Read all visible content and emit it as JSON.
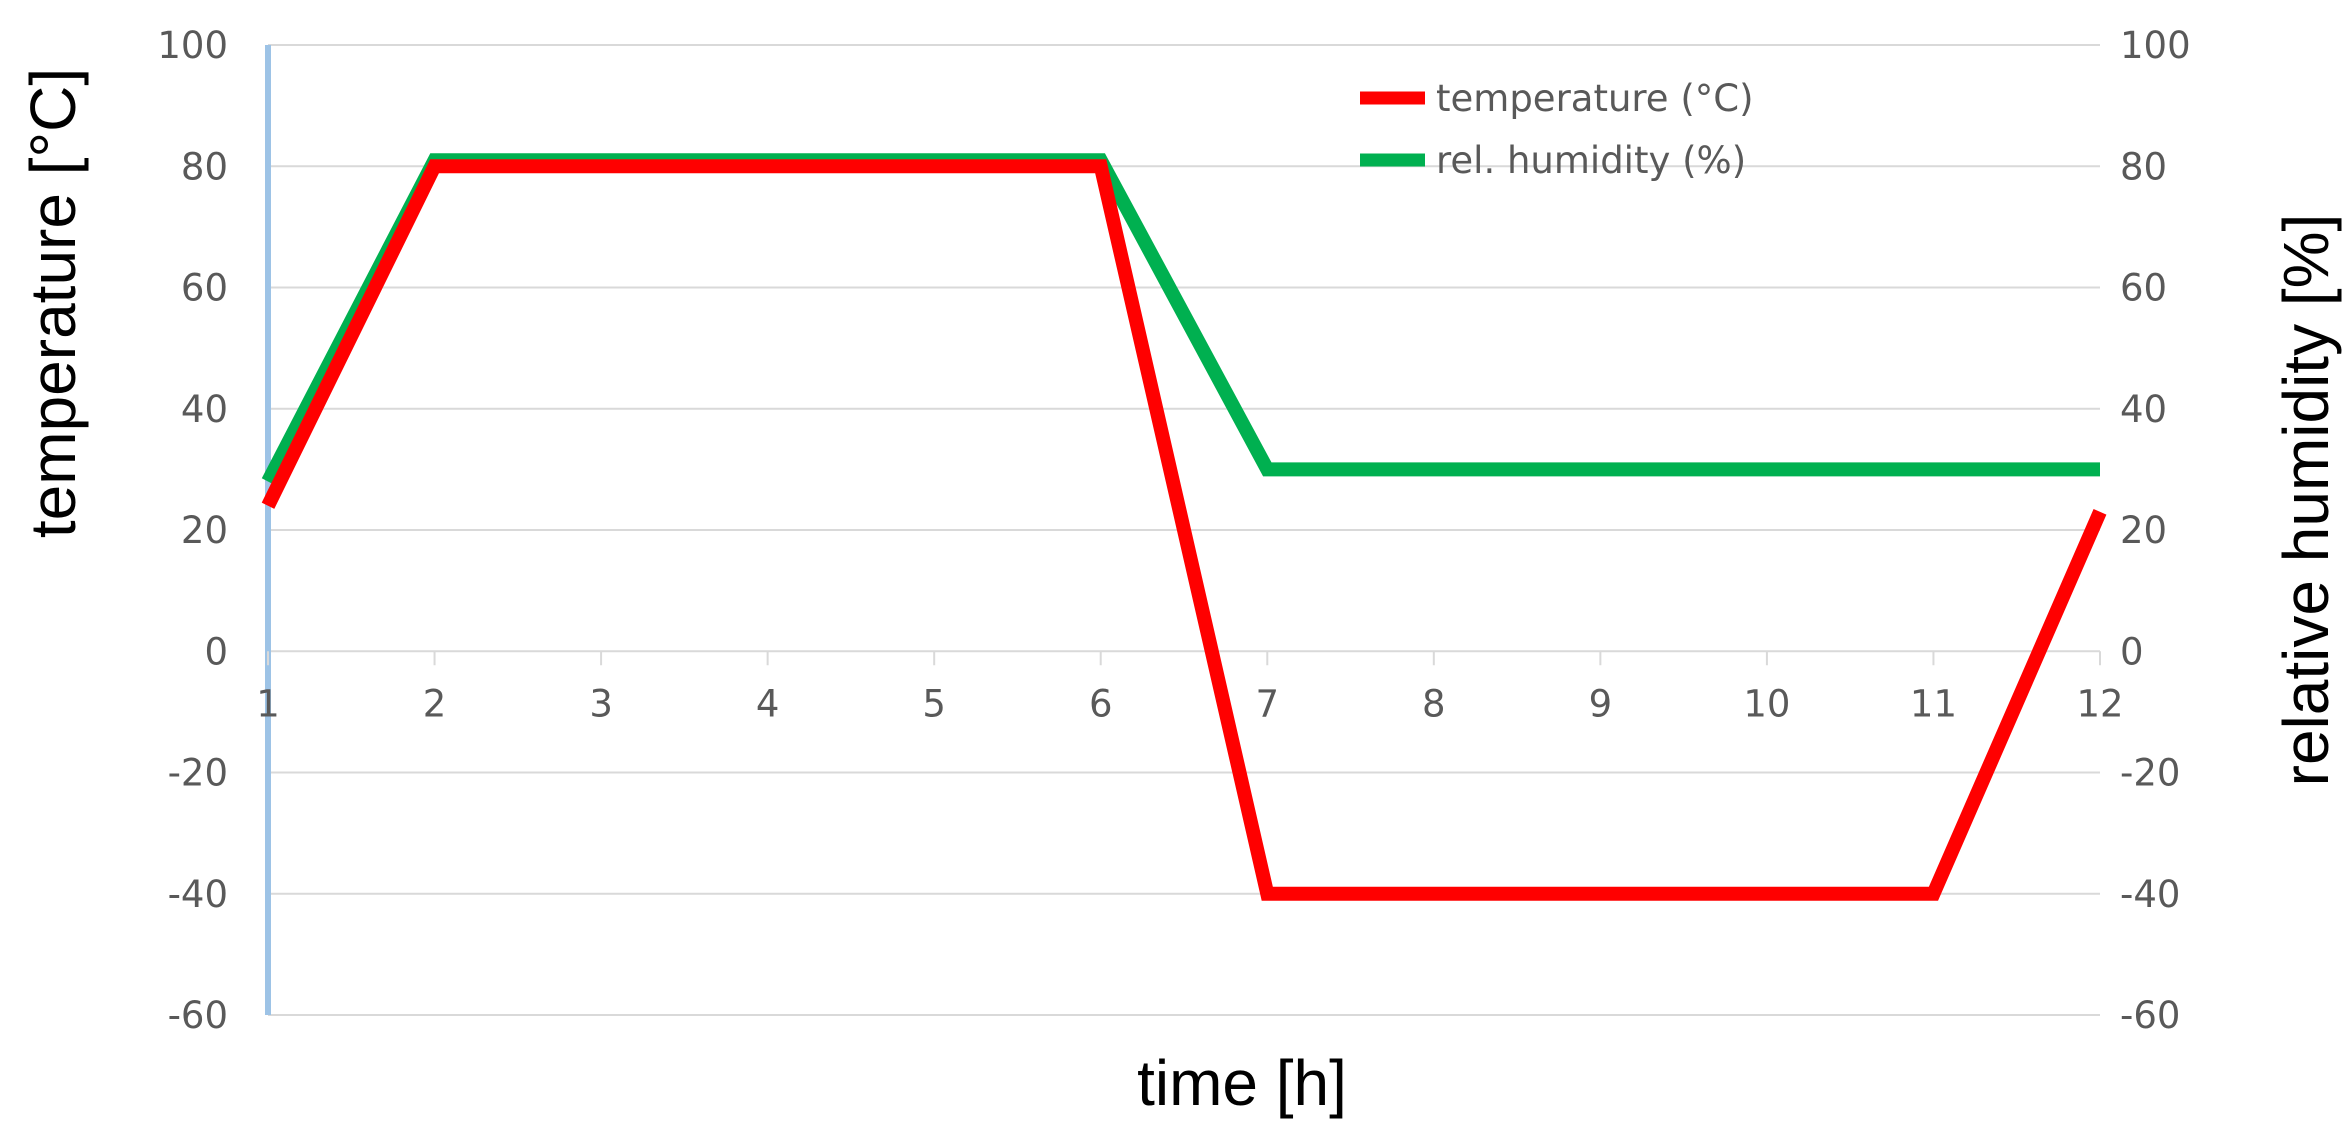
{
  "chart_data": {
    "type": "line",
    "xlabel": "time [h]",
    "ylabel_left": "temperature [°C]",
    "ylabel_right": "relative humidity [%]",
    "x": [
      1,
      2,
      3,
      4,
      5,
      6,
      7,
      8,
      9,
      10,
      11,
      12
    ],
    "x_tick_labels": [
      "1",
      "2",
      "3",
      "4",
      "5",
      "6",
      "7",
      "8",
      "9",
      "10",
      "11",
      "12"
    ],
    "y_tick_labels": [
      "100",
      "80",
      "60",
      "40",
      "20",
      "0",
      "-20",
      "-40",
      "-60"
    ],
    "ylim_left": [
      -60,
      100
    ],
    "ylim_right": [
      -60,
      100
    ],
    "grid": true,
    "legend_position": "top-right",
    "series": [
      {
        "name": "temperature (°C)",
        "axis": "left",
        "color": "#ff0000",
        "values": [
          24,
          80,
          80,
          80,
          80,
          80,
          -40,
          -40,
          -40,
          -40,
          -40,
          23
        ]
      },
      {
        "name": "rel. humidity (%)",
        "axis": "right",
        "color": "#00b050",
        "values": [
          28,
          81,
          81,
          81,
          81,
          81,
          30,
          30,
          30,
          30,
          30,
          30
        ]
      }
    ]
  }
}
